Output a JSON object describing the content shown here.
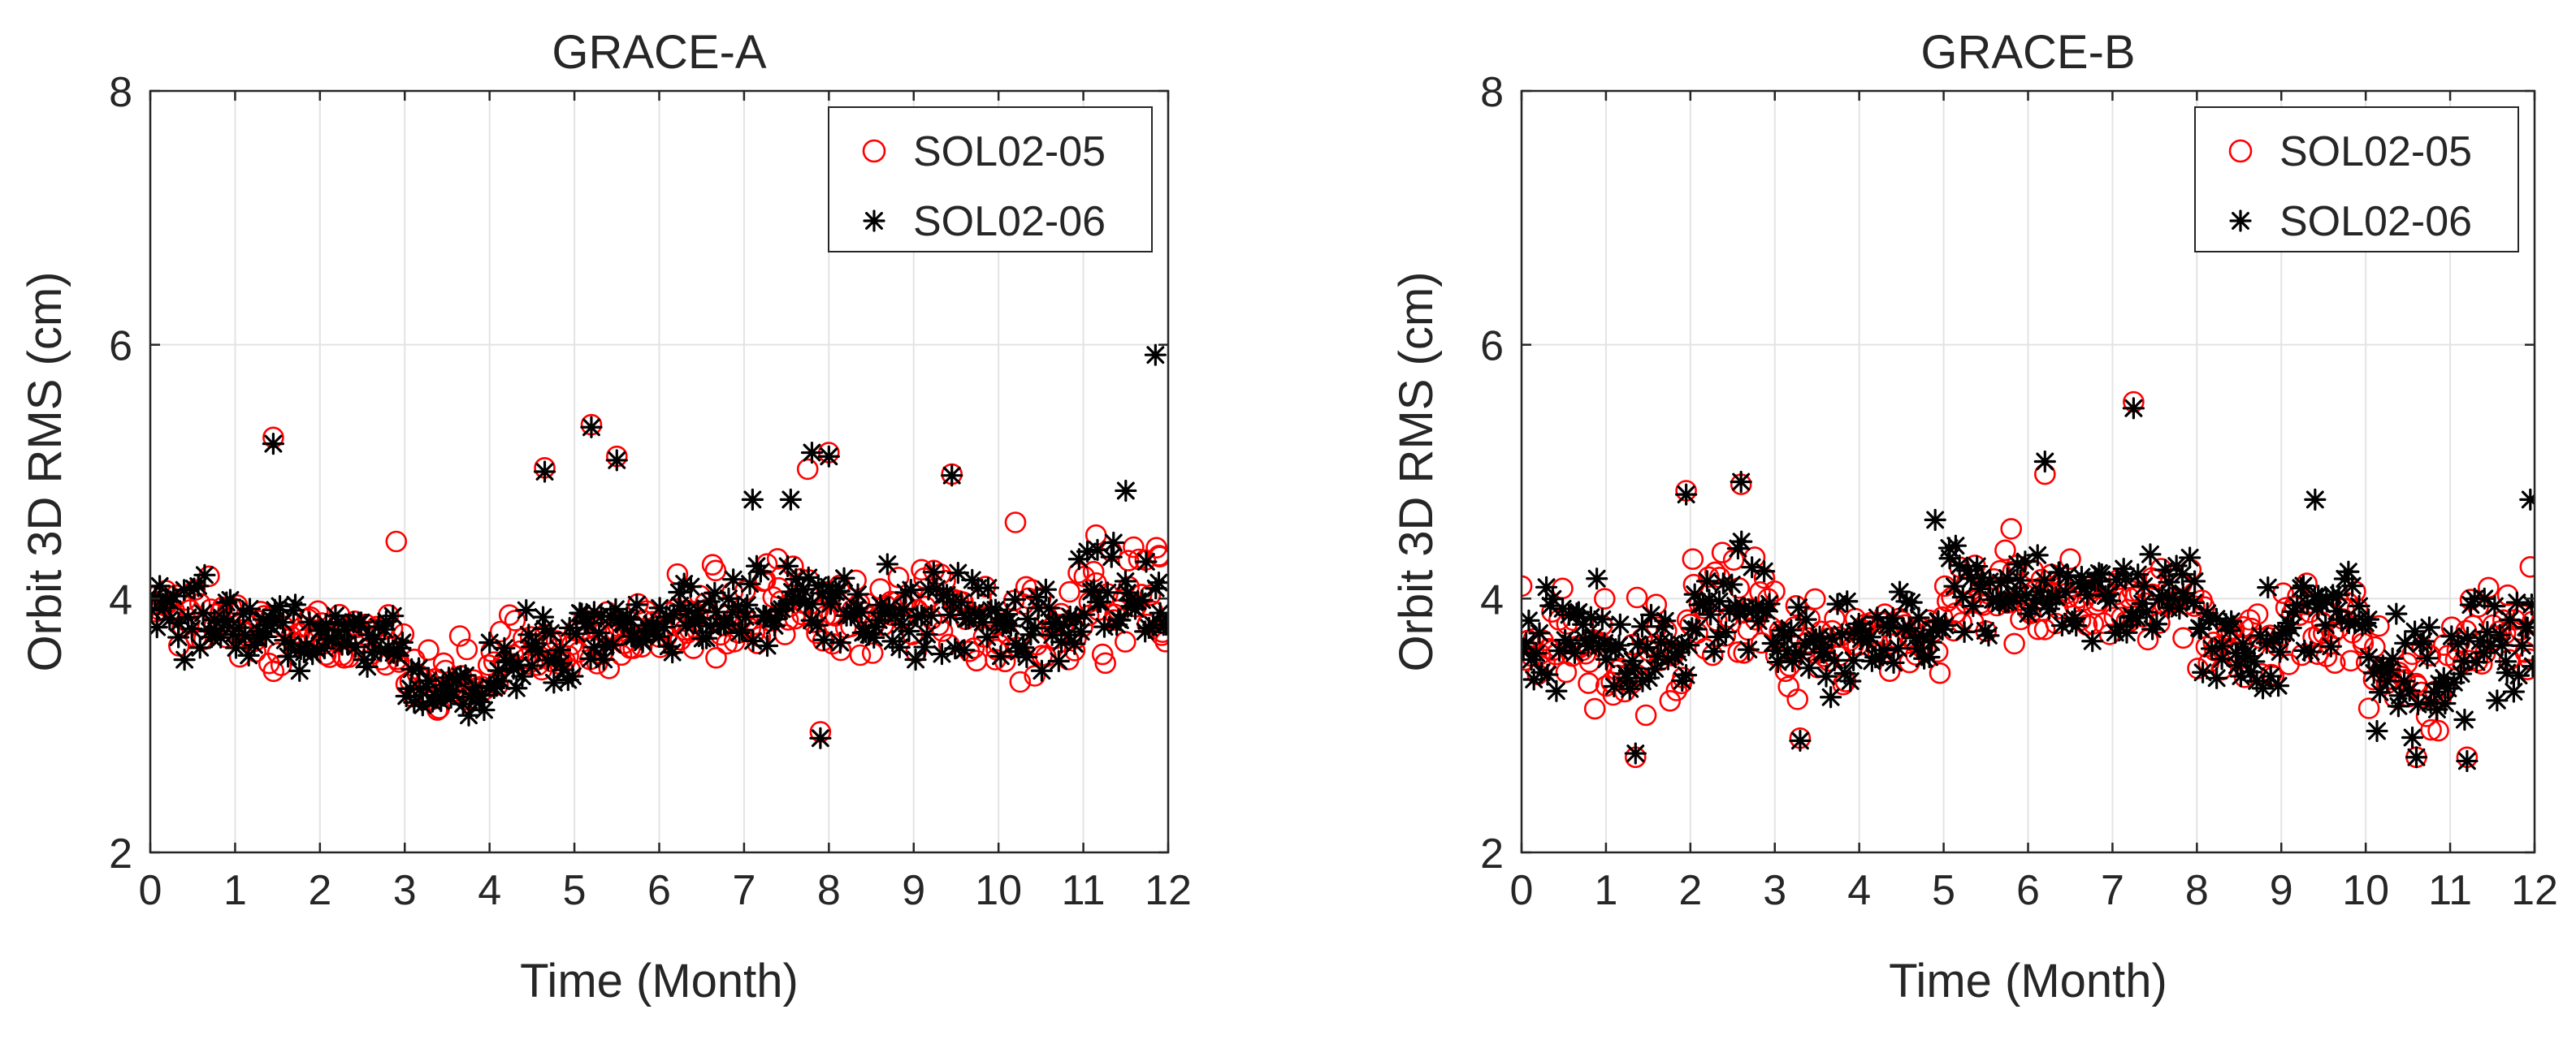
{
  "chart_data": [
    {
      "type": "scatter",
      "title": "GRACE-A",
      "xlabel": "Time (Month)",
      "ylabel": "Orbit 3D RMS (cm)",
      "xlim": [
        0,
        12
      ],
      "ylim": [
        2,
        8
      ],
      "xticks": [
        "0",
        "1",
        "2",
        "3",
        "4",
        "5",
        "6",
        "7",
        "8",
        "9",
        "10",
        "11",
        "12"
      ],
      "yticks": [
        "2",
        "4",
        "6",
        "8"
      ],
      "grid": true,
      "legend_position": "top-right",
      "series": [
        {
          "name": "SOL02-05",
          "marker": "circle",
          "color": "#ff0000",
          "outliers": [
            [
              1.45,
              5.27
            ],
            [
              4.65,
              5.03
            ],
            [
              5.2,
              5.37
            ],
            [
              5.5,
              5.12
            ],
            [
              7.75,
              5.02
            ],
            [
              8.0,
              5.15
            ],
            [
              9.45,
              4.98
            ],
            [
              11.9,
              4.33
            ],
            [
              7.9,
              2.95
            ],
            [
              2.9,
              4.45
            ],
            [
              10.2,
              4.6
            ],
            [
              11.15,
              4.5
            ]
          ],
          "bands": [
            {
              "x": [
                0.0,
                1.0
              ],
              "lo": 3.35,
              "hi": 4.35
            },
            {
              "x": [
                1.0,
                2.0
              ],
              "lo": 3.25,
              "hi": 4.1
            },
            {
              "x": [
                2.0,
                3.0
              ],
              "lo": 3.35,
              "hi": 4.0
            },
            {
              "x": [
                3.0,
                4.0
              ],
              "lo": 2.95,
              "hi": 3.75
            },
            {
              "x": [
                4.0,
                5.0
              ],
              "lo": 3.2,
              "hi": 4.0
            },
            {
              "x": [
                5.0,
                6.0
              ],
              "lo": 3.35,
              "hi": 4.15
            },
            {
              "x": [
                6.0,
                7.0
              ],
              "lo": 3.3,
              "hi": 4.35
            },
            {
              "x": [
                7.0,
                8.0
              ],
              "lo": 3.45,
              "hi": 4.5
            },
            {
              "x": [
                8.0,
                9.0
              ],
              "lo": 3.45,
              "hi": 4.3
            },
            {
              "x": [
                9.0,
                10.0
              ],
              "lo": 3.35,
              "hi": 4.45
            },
            {
              "x": [
                10.0,
                11.0
              ],
              "lo": 3.25,
              "hi": 4.3
            },
            {
              "x": [
                11.0,
                12.0
              ],
              "lo": 3.35,
              "hi": 4.6
            }
          ]
        },
        {
          "name": "SOL02-06",
          "marker": "asterisk",
          "color": "#000000",
          "outliers": [
            [
              1.45,
              5.22
            ],
            [
              4.65,
              5.0
            ],
            [
              5.2,
              5.35
            ],
            [
              5.5,
              5.09
            ],
            [
              7.8,
              5.15
            ],
            [
              8.0,
              5.12
            ],
            [
              9.45,
              4.97
            ],
            [
              11.5,
              4.85
            ],
            [
              11.85,
              5.92
            ],
            [
              7.9,
              2.9
            ],
            [
              7.1,
              4.78
            ],
            [
              7.55,
              4.78
            ]
          ],
          "bands": [
            {
              "x": [
                0.0,
                1.0
              ],
              "lo": 3.4,
              "hi": 4.35
            },
            {
              "x": [
                1.0,
                2.0
              ],
              "lo": 3.3,
              "hi": 4.1
            },
            {
              "x": [
                2.0,
                3.0
              ],
              "lo": 3.35,
              "hi": 4.0
            },
            {
              "x": [
                3.0,
                4.0
              ],
              "lo": 2.95,
              "hi": 3.7
            },
            {
              "x": [
                4.0,
                5.0
              ],
              "lo": 3.1,
              "hi": 4.0
            },
            {
              "x": [
                5.0,
                6.0
              ],
              "lo": 3.35,
              "hi": 4.15
            },
            {
              "x": [
                6.0,
                7.0
              ],
              "lo": 3.3,
              "hi": 4.4
            },
            {
              "x": [
                7.0,
                8.0
              ],
              "lo": 3.45,
              "hi": 4.45
            },
            {
              "x": [
                8.0,
                9.0
              ],
              "lo": 3.45,
              "hi": 4.3
            },
            {
              "x": [
                9.0,
                10.0
              ],
              "lo": 3.3,
              "hi": 4.45
            },
            {
              "x": [
                10.0,
                11.0
              ],
              "lo": 3.25,
              "hi": 4.45
            },
            {
              "x": [
                11.0,
                12.0
              ],
              "lo": 3.35,
              "hi": 4.6
            }
          ]
        }
      ]
    },
    {
      "type": "scatter",
      "title": "GRACE-B",
      "xlabel": "Time (Month)",
      "ylabel": "Orbit 3D RMS (cm)",
      "xlim": [
        0,
        12
      ],
      "ylim": [
        2,
        8
      ],
      "xticks": [
        "0",
        "1",
        "2",
        "3",
        "4",
        "5",
        "6",
        "7",
        "8",
        "9",
        "10",
        "11",
        "12"
      ],
      "yticks": [
        "2",
        "4",
        "6",
        "8"
      ],
      "grid": true,
      "legend_position": "top-right",
      "series": [
        {
          "name": "SOL02-05",
          "marker": "circle",
          "color": "#ff0000",
          "outliers": [
            [
              7.25,
              5.55
            ],
            [
              6.2,
              4.98
            ],
            [
              2.6,
              4.9
            ],
            [
              1.95,
              4.85
            ],
            [
              5.8,
              4.55
            ],
            [
              1.35,
              2.75
            ],
            [
              11.2,
              2.75
            ],
            [
              10.6,
              2.75
            ],
            [
              11.95,
              4.25
            ],
            [
              3.3,
              2.9
            ]
          ],
          "bands": [
            {
              "x": [
                0.0,
                1.0
              ],
              "lo": 3.05,
              "hi": 4.3
            },
            {
              "x": [
                1.0,
                2.0
              ],
              "lo": 2.95,
              "hi": 4.1
            },
            {
              "x": [
                2.0,
                3.0
              ],
              "lo": 3.35,
              "hi": 4.5
            },
            {
              "x": [
                3.0,
                4.0
              ],
              "lo": 3.1,
              "hi": 4.2
            },
            {
              "x": [
                4.0,
                5.0
              ],
              "lo": 3.3,
              "hi": 4.1
            },
            {
              "x": [
                5.0,
                6.0
              ],
              "lo": 3.55,
              "hi": 4.5
            },
            {
              "x": [
                6.0,
                7.0
              ],
              "lo": 3.55,
              "hi": 4.5
            },
            {
              "x": [
                7.0,
                8.0
              ],
              "lo": 3.5,
              "hi": 4.45
            },
            {
              "x": [
                8.0,
                9.0
              ],
              "lo": 3.1,
              "hi": 4.2
            },
            {
              "x": [
                9.0,
                10.0
              ],
              "lo": 3.25,
              "hi": 4.35
            },
            {
              "x": [
                10.0,
                11.0
              ],
              "lo": 2.8,
              "hi": 3.9
            },
            {
              "x": [
                11.0,
                12.0
              ],
              "lo": 3.0,
              "hi": 4.25
            }
          ]
        },
        {
          "name": "SOL02-06",
          "marker": "asterisk",
          "color": "#000000",
          "outliers": [
            [
              7.25,
              5.5
            ],
            [
              6.2,
              5.08
            ],
            [
              2.6,
              4.92
            ],
            [
              1.95,
              4.82
            ],
            [
              4.9,
              4.62
            ],
            [
              1.35,
              2.78
            ],
            [
              11.2,
              2.72
            ],
            [
              10.6,
              2.75
            ],
            [
              11.95,
              4.78
            ],
            [
              9.4,
              4.78
            ],
            [
              3.3,
              2.88
            ]
          ],
          "bands": [
            {
              "x": [
                0.0,
                1.0
              ],
              "lo": 3.1,
              "hi": 4.35
            },
            {
              "x": [
                1.0,
                2.0
              ],
              "lo": 2.95,
              "hi": 4.15
            },
            {
              "x": [
                2.0,
                3.0
              ],
              "lo": 3.35,
              "hi": 4.55
            },
            {
              "x": [
                3.0,
                4.0
              ],
              "lo": 3.05,
              "hi": 4.2
            },
            {
              "x": [
                4.0,
                5.0
              ],
              "lo": 3.3,
              "hi": 4.15
            },
            {
              "x": [
                5.0,
                6.0
              ],
              "lo": 3.55,
              "hi": 4.55
            },
            {
              "x": [
                6.0,
                7.0
              ],
              "lo": 3.55,
              "hi": 4.55
            },
            {
              "x": [
                7.0,
                8.0
              ],
              "lo": 3.5,
              "hi": 4.5
            },
            {
              "x": [
                8.0,
                9.0
              ],
              "lo": 3.1,
              "hi": 4.2
            },
            {
              "x": [
                9.0,
                10.0
              ],
              "lo": 3.25,
              "hi": 4.45
            },
            {
              "x": [
                10.0,
                11.0
              ],
              "lo": 2.75,
              "hi": 3.95
            },
            {
              "x": [
                11.0,
                12.0
              ],
              "lo": 3.0,
              "hi": 4.3
            }
          ]
        }
      ]
    }
  ]
}
